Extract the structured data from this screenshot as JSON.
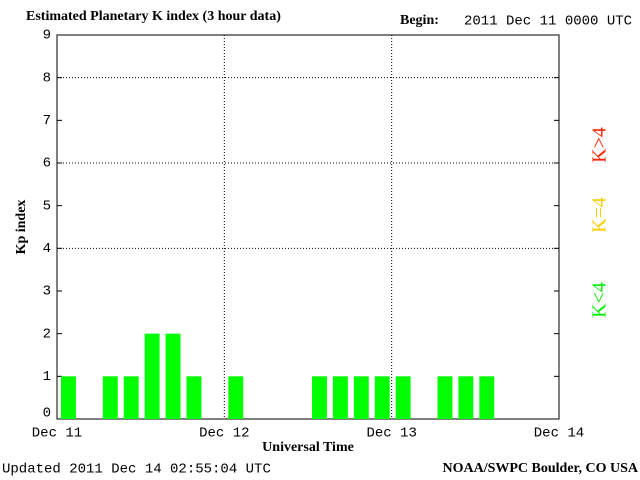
{
  "chart_data": {
    "type": "bar",
    "title": "Estimated Planetary K index (3 hour data)",
    "begin_label": "Begin:",
    "begin_value": "2011 Dec 11 0000 UTC",
    "y_label": "Kp index",
    "x_label": "Universal Time",
    "updated": "Updated 2011 Dec 14 02:55:04 UTC",
    "source": "NOAA/SWPC Boulder, CO USA",
    "categories": [
      null,
      null,
      null,
      null,
      null,
      null,
      null,
      null,
      null,
      null,
      null,
      null,
      null,
      null,
      null,
      null,
      null,
      null,
      null,
      null,
      null,
      null,
      null,
      null
    ],
    "values": [
      1,
      0,
      1,
      1,
      2,
      2,
      1,
      0,
      1,
      0,
      0,
      0,
      1,
      1,
      1,
      1,
      1,
      0,
      1,
      1,
      1,
      0,
      0,
      0
    ],
    "color": "#00ff00",
    "xticks": [
      "Dec 11",
      "Dec 12",
      "Dec 13",
      "Dec 14"
    ],
    "ylim": [
      0,
      9
    ],
    "yticks": [
      0,
      1,
      2,
      3,
      4,
      5,
      6,
      7,
      8,
      9
    ],
    "ygrid": [
      4,
      6,
      8
    ],
    "legend": [
      {
        "label": "K<4",
        "color": "#00ee00"
      },
      {
        "label": "K=4",
        "color": "#ffcc00"
      },
      {
        "label": "K>4",
        "color": "#ff2200"
      }
    ]
  }
}
